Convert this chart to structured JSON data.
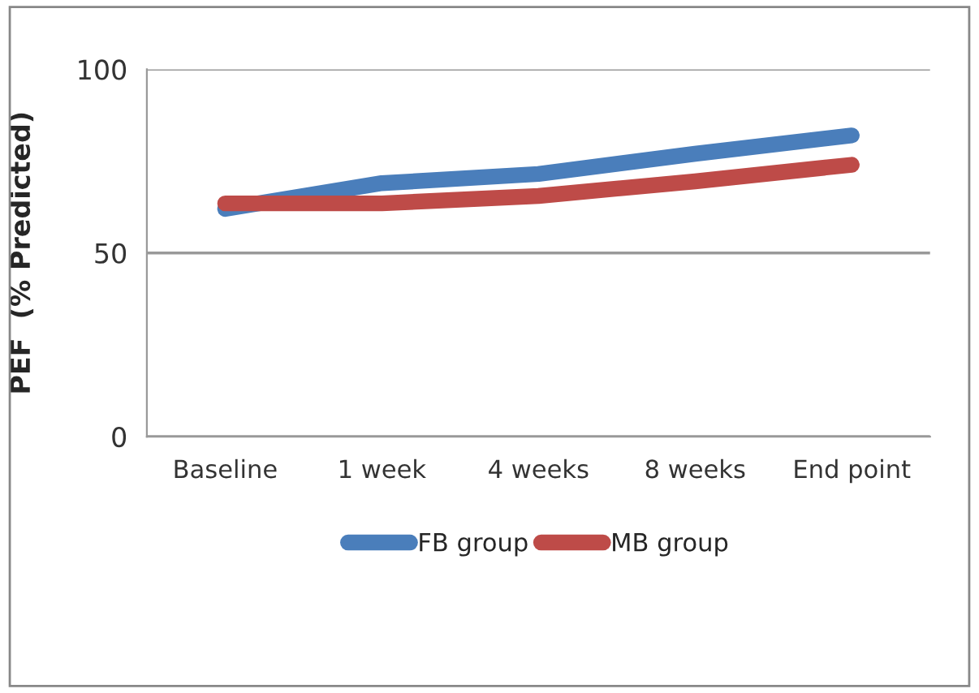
{
  "chart_data": {
    "type": "line",
    "ylabel": "PEF  (% Predicted)",
    "categories": [
      "Baseline",
      "1 week",
      "4 weeks",
      "8 weeks",
      "End point"
    ],
    "series": [
      {
        "name": "FB group",
        "color": "#4a7ebb",
        "values": [
          62,
          69,
          71.5,
          77,
          82
        ]
      },
      {
        "name": "MB group",
        "color": "#be4b48",
        "values": [
          63.5,
          63.5,
          65.5,
          69.5,
          74
        ]
      }
    ],
    "ylim": [
      0,
      100
    ],
    "yticks": [
      0,
      50,
      100
    ],
    "grid": "y",
    "legend": "bottom",
    "marker": "none",
    "line_style": "solid"
  }
}
